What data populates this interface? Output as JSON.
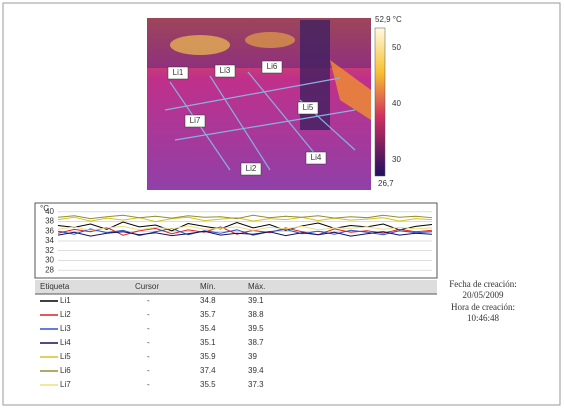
{
  "thermal_image": {
    "scale_max": "52,9 °C",
    "scale_ticks": [
      "50",
      "40",
      "30"
    ],
    "scale_min": "26,7",
    "line_labels": [
      "Li1",
      "Li3",
      "Li6",
      "Li5",
      "Li7",
      "Li2",
      "Li4"
    ]
  },
  "trend_chart": {
    "type": "line",
    "y_label": "°C",
    "ylim": [
      27,
      41
    ],
    "yticks": [
      40,
      38,
      36,
      34,
      32,
      30,
      28
    ],
    "series": [
      {
        "color": "#000000",
        "values": [
          37.2,
          36.8,
          37.5,
          36.4,
          37.9,
          36.9,
          37.3,
          36.1,
          37.6,
          37.0,
          36.5,
          37.8,
          36.7,
          37.4,
          36.2,
          37.1,
          37.7,
          36.6,
          37.2,
          36.9,
          37.5,
          36.3,
          37.0,
          37.4
        ]
      },
      {
        "color": "#e02020",
        "values": [
          35.6,
          36.4,
          35.9,
          36.8,
          35.2,
          36.1,
          36.6,
          35.5,
          36.3,
          35.8,
          36.9,
          35.4,
          36.2,
          35.7,
          36.7,
          35.9,
          35.3,
          36.5,
          35.8,
          36.1,
          35.6,
          36.4,
          35.9,
          36.2
        ]
      },
      {
        "color": "#3050d0",
        "values": [
          36.0,
          35.4,
          36.5,
          35.7,
          36.2,
          35.1,
          35.9,
          36.6,
          35.3,
          36.1,
          35.6,
          36.3,
          35.2,
          35.9,
          36.4,
          35.5,
          36.0,
          35.4,
          36.2,
          35.8,
          35.3,
          36.1,
          35.7,
          35.9
        ]
      },
      {
        "color": "#101060",
        "values": [
          35.2,
          35.8,
          35.0,
          35.6,
          35.9,
          35.3,
          35.7,
          35.1,
          35.5,
          36.0,
          35.2,
          35.6,
          35.4,
          35.9,
          35.1,
          35.7,
          35.3,
          35.8,
          35.0,
          35.5,
          35.9,
          35.2,
          35.6,
          35.4
        ]
      },
      {
        "color": "#d8c020",
        "values": [
          38.4,
          38.9,
          38.1,
          38.7,
          38.3,
          38.8,
          38.0,
          38.6,
          38.9,
          38.2,
          38.5,
          38.8,
          38.1,
          38.6,
          38.4,
          38.9,
          38.2,
          38.7,
          38.3,
          38.5,
          38.8,
          38.1,
          38.6,
          38.4
        ]
      },
      {
        "color": "#909030",
        "values": [
          38.9,
          39.2,
          38.6,
          39.0,
          39.3,
          38.8,
          39.1,
          38.7,
          39.2,
          38.9,
          39.0,
          38.6,
          39.3,
          38.8,
          39.1,
          38.9,
          39.2,
          38.7,
          39.0,
          38.8,
          39.3,
          38.9,
          39.1,
          38.8
        ]
      },
      {
        "color": "#e8e080",
        "values": [
          36.4,
          36.9,
          36.2,
          36.7,
          37.0,
          36.3,
          36.8,
          36.5,
          37.1,
          36.4,
          36.6,
          36.9,
          36.2,
          36.8,
          36.5,
          37.0,
          36.3,
          36.7,
          36.6,
          36.9,
          36.4,
          36.8,
          36.5,
          36.7
        ]
      }
    ]
  },
  "table": {
    "headers": [
      "Etiqueta",
      "Cursor",
      "Mín.",
      "Máx."
    ],
    "rows": [
      [
        "Li1",
        "-",
        34.8,
        39.1
      ],
      [
        "Li2",
        "-",
        35.7,
        38.8
      ],
      [
        "Li3",
        "-",
        35.4,
        39.5
      ],
      [
        "Li4",
        "-",
        35.1,
        38.7
      ],
      [
        "Li5",
        "-",
        35.9,
        39.0
      ],
      [
        "Li6",
        "-",
        37.4,
        39.4
      ],
      [
        "Li7",
        "-",
        35.5,
        37.3
      ]
    ]
  },
  "info": {
    "date_label": "Fecha de creación:",
    "date": "20/05/2009",
    "time_label": "Hora de creación:",
    "time": "10:46:48"
  }
}
